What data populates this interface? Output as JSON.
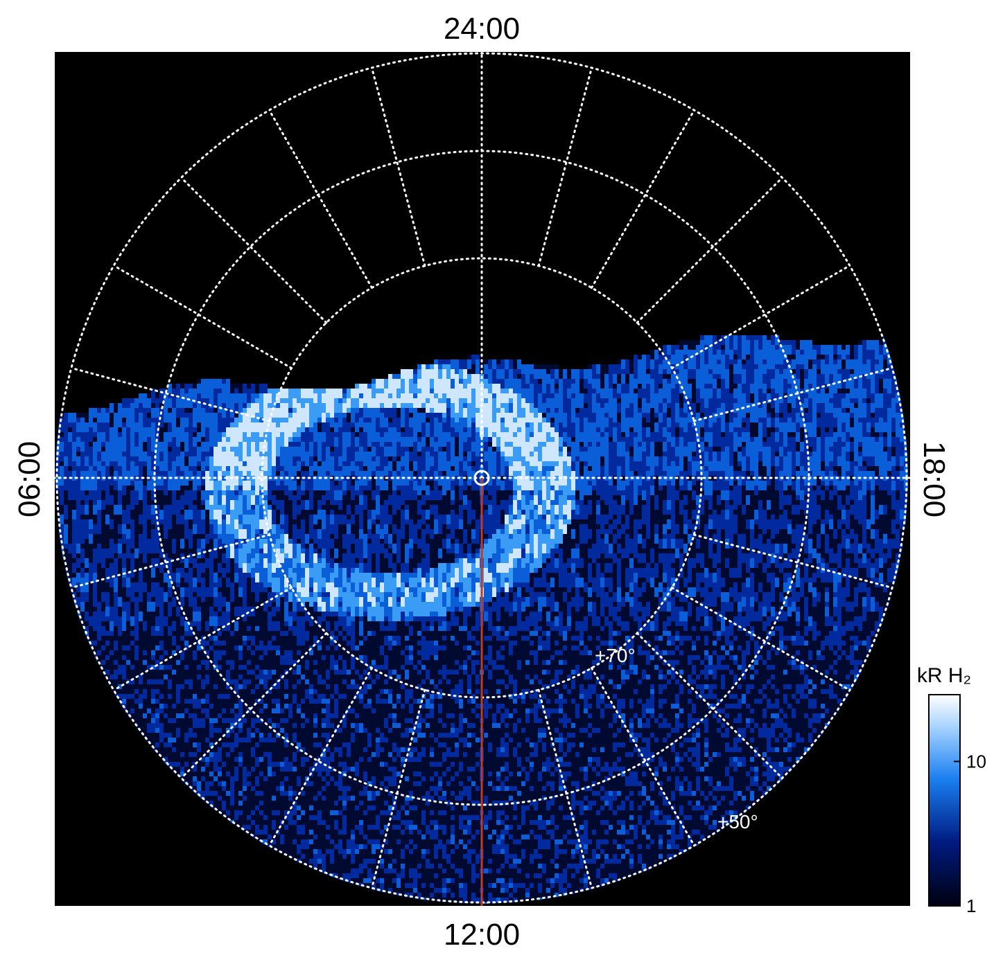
{
  "chart_data": {
    "type": "polar-image",
    "local_time_labels": {
      "top": "24:00",
      "left": "06:00",
      "right": "18:00",
      "bottom": "12:00"
    },
    "latitude_labels": [
      "+70°",
      "+50°"
    ],
    "colorbar": {
      "label": "kR H₂",
      "scale": "log",
      "lim": [
        1,
        29
      ],
      "ticks": [
        1,
        10
      ]
    },
    "meridian_color": "#c8381e"
  }
}
